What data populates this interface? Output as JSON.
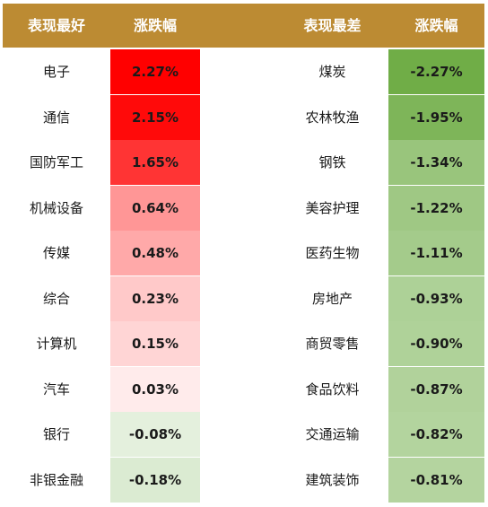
{
  "header": {
    "best_name": "表现最好",
    "best_change": "涨跌幅",
    "worst_name": "表现最差",
    "worst_change": "涨跌幅"
  },
  "colors": {
    "header_bg": "#bc8b33",
    "header_text": "#ffffff",
    "up_strong": "#ff0000",
    "up_light": "#fff5f5",
    "down_strong": "#70ad47",
    "down_light": "#eef6ea"
  },
  "chart_data": [
    {
      "type": "table",
      "title": "表现最好",
      "columns": [
        "表现最好",
        "涨跌幅"
      ],
      "categories": [
        "电子",
        "通信",
        "国防军工",
        "机械设备",
        "传媒",
        "综合",
        "计算机",
        "汽车",
        "银行",
        "非银金融"
      ],
      "values": [
        2.27,
        2.15,
        1.65,
        0.64,
        0.48,
        0.23,
        0.15,
        0.03,
        -0.08,
        -0.18
      ],
      "labels": [
        "2.27%",
        "2.15%",
        "1.65%",
        "0.64%",
        "0.48%",
        "0.23%",
        "0.15%",
        "0.03%",
        "-0.08%",
        "-0.18%"
      ]
    },
    {
      "type": "table",
      "title": "表现最差",
      "columns": [
        "表现最差",
        "涨跌幅"
      ],
      "categories": [
        "煤炭",
        "农林牧渔",
        "钢铁",
        "美容护理",
        "医药生物",
        "房地产",
        "商贸零售",
        "食品饮料",
        "交通运输",
        "建筑装饰"
      ],
      "values": [
        -2.27,
        -1.95,
        -1.34,
        -1.22,
        -1.11,
        -0.93,
        -0.9,
        -0.87,
        -0.82,
        -0.81
      ],
      "labels": [
        "-2.27%",
        "-1.95%",
        "-1.34%",
        "-1.22%",
        "-1.11%",
        "-0.93%",
        "-0.90%",
        "-0.87%",
        "-0.82%",
        "-0.81%"
      ]
    }
  ]
}
